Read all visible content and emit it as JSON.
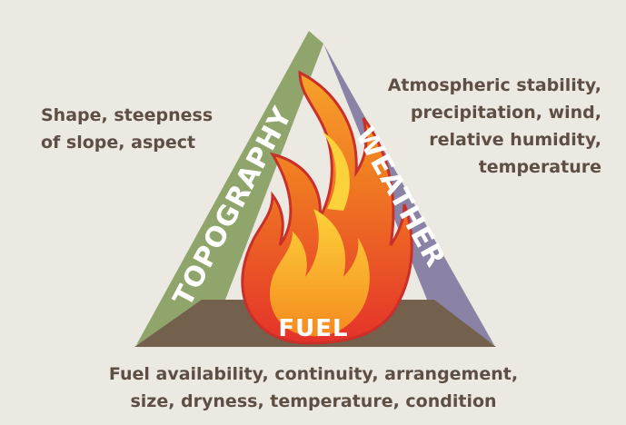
{
  "topography": {
    "label": "TOPOGRAPHY",
    "description": [
      "Shape, steepness",
      "of slope, aspect"
    ]
  },
  "weather": {
    "label": "WEATHER",
    "description": [
      "Atmospheric stability,",
      "precipitation, wind,",
      "relative humidity,",
      "temperature"
    ]
  },
  "fuel": {
    "label": "FUEL",
    "description": [
      "Fuel availability, continuity, arrangement,",
      "size, dryness, temperature, condition"
    ]
  }
}
